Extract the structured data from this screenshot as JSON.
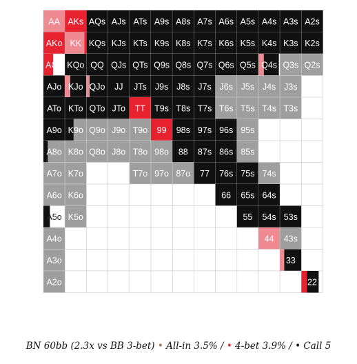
{
  "chart_data": {
    "type": "heatmap",
    "title": "",
    "ranks": [
      "A",
      "K",
      "Q",
      "J",
      "T",
      "9",
      "8",
      "7",
      "6",
      "5",
      "4",
      "3",
      "2"
    ],
    "legend": {
      "text_prefix": "BN 60bb (2.3x vs BB 3-bet)",
      "entries": [
        {
          "name": "All-in",
          "value": "3.5%",
          "color": "#f08a92"
        },
        {
          "name": "4-bet",
          "value": "3.9%",
          "color": "#e8212e"
        },
        {
          "name": "Call",
          "value": "5",
          "color": "#111111"
        }
      ],
      "separator": " / "
    },
    "colors": {
      "call": "#111111",
      "allin": "#f08a92",
      "fourbet": "#e8212e",
      "fold_gray": "#9e9e9e",
      "empty": "#ffffff",
      "grid_line": "#cccccc"
    },
    "hands": [
      [
        "AA",
        "AKs",
        "AQs",
        "AJs",
        "ATs",
        "A9s",
        "A8s",
        "A7s",
        "A6s",
        "A5s",
        "A4s",
        "A3s",
        "A2s"
      ],
      [
        "AKo",
        "KK",
        "KQs",
        "KJs",
        "KTs",
        "K9s",
        "K8s",
        "K7s",
        "K6s",
        "K5s",
        "K4s",
        "K3s",
        "K2s"
      ],
      [
        "AQo",
        "KQo",
        "QQ",
        "QJs",
        "QTs",
        "Q9s",
        "Q8s",
        "Q7s",
        "Q6s",
        "Q5s",
        "Q4s",
        "Q3s",
        "Q2s"
      ],
      [
        "AJo",
        "KJo",
        "QJo",
        "JJ",
        "JTs",
        "J9s",
        "J8s",
        "J7s",
        "J6s",
        "J5s",
        "J4s",
        "J3s",
        ""
      ],
      [
        "ATo",
        "KTo",
        "QTo",
        "JTo",
        "TT",
        "T9s",
        "T8s",
        "T7s",
        "T6s",
        "T5s",
        "T4s",
        "T3s",
        ""
      ],
      [
        "A9o",
        "K9o",
        "Q9o",
        "J9o",
        "T9o",
        "99",
        "98s",
        "97s",
        "96s",
        "95s",
        "",
        "",
        ""
      ],
      [
        "A8o",
        "K8o",
        "Q8o",
        "J8o",
        "T8o",
        "98o",
        "88",
        "87s",
        "86s",
        "85s",
        "",
        "",
        ""
      ],
      [
        "A7o",
        "K7o",
        "",
        "",
        "T7o",
        "97o",
        "87o",
        "77",
        "76s",
        "75s",
        "74s",
        "",
        ""
      ],
      [
        "A6o",
        "K6o",
        "",
        "",
        "",
        "",
        "",
        "",
        "66",
        "65s",
        "64s",
        "",
        ""
      ],
      [
        "A5o",
        "K5o",
        "",
        "",
        "",
        "",
        "",
        "",
        "",
        "55",
        "54s",
        "53s",
        ""
      ],
      [
        "A4o",
        "",
        "",
        "",
        "",
        "",
        "",
        "",
        "",
        "",
        "44",
        "43s",
        ""
      ],
      [
        "A3o",
        "",
        "",
        "",
        "",
        "",
        "",
        "",
        "",
        "",
        "",
        "33",
        ""
      ],
      [
        "A2o",
        "",
        "",
        "",
        "",
        "",
        "",
        "",
        "",
        "",
        "",
        "",
        "22"
      ]
    ],
    "frequencies": [
      [
        {
          "c": 0.0,
          "a": 0.0,
          "f": 1.0
        },
        {
          "c": 0.0,
          "a": 1.0,
          "f": 0.0
        },
        {
          "c": 1.0,
          "a": 0.0,
          "f": 0.0
        },
        {
          "c": 1.0,
          "a": 0.0,
          "f": 0.0
        },
        {
          "c": 1.0,
          "a": 0.0,
          "f": 0.0
        },
        {
          "c": 1.0,
          "a": 0.0,
          "f": 0.0
        },
        {
          "c": 1.0,
          "a": 0.0,
          "f": 0.0
        },
        {
          "c": 1.0,
          "a": 0.0,
          "f": 0.0
        },
        {
          "c": 1.0,
          "a": 0.0,
          "f": 0.0
        },
        {
          "c": 1.0,
          "a": 0.0,
          "f": 0.0
        },
        {
          "c": 1.0,
          "a": 0.0,
          "f": 0.0
        },
        {
          "c": 1.0,
          "a": 0.0,
          "f": 0.0
        },
        {
          "c": 1.0,
          "a": 0.0,
          "f": 0.0
        }
      ],
      [
        {
          "c": 0.0,
          "a": 1.0,
          "f": 0.0
        },
        {
          "c": 0.0,
          "a": 0.1,
          "f": 0.9
        },
        {
          "c": 1.0,
          "a": 0.0,
          "f": 0.0
        },
        {
          "c": 1.0,
          "a": 0.0,
          "f": 0.0
        },
        {
          "c": 1.0,
          "a": 0.0,
          "f": 0.0
        },
        {
          "c": 1.0,
          "a": 0.0,
          "f": 0.0
        },
        {
          "c": 1.0,
          "a": 0.0,
          "f": 0.0
        },
        {
          "c": 1.0,
          "a": 0.0,
          "f": 0.0
        },
        {
          "c": 1.0,
          "a": 0.0,
          "f": 0.0
        },
        {
          "c": 1.0,
          "a": 0.0,
          "f": 0.0
        },
        {
          "c": 1.0,
          "a": 0.0,
          "f": 0.0
        },
        {
          "c": 1.0,
          "a": 0.0,
          "f": 0.0
        },
        {
          "c": 1.0,
          "a": 0.0,
          "f": 0.0
        }
      ],
      [
        {
          "c": 0.0,
          "a": 0.45,
          "f": 0.0
        },
        {
          "c": 1.0,
          "a": 0.0,
          "f": 0.0
        },
        {
          "c": 1.0,
          "a": 0.0,
          "f": 0.0
        },
        {
          "c": 1.0,
          "a": 0.0,
          "f": 0.0
        },
        {
          "c": 1.0,
          "a": 0.0,
          "f": 0.0
        },
        {
          "c": 1.0,
          "a": 0.0,
          "f": 0.0
        },
        {
          "c": 1.0,
          "a": 0.0,
          "f": 0.0
        },
        {
          "c": 1.0,
          "a": 0.0,
          "f": 0.0
        },
        {
          "c": 1.0,
          "a": 0.0,
          "f": 0.0
        },
        {
          "c": 1.0,
          "a": 0.0,
          "f": 0.0
        },
        {
          "c": 0.7,
          "a": 0.0,
          "f": 0.25
        },
        {
          "c": 0.0,
          "a": 0.0,
          "f": 0.0
        },
        {
          "c": 0.0,
          "a": 0.0,
          "f": 0.0
        }
      ],
      [
        {
          "c": 1.0,
          "a": 0.0,
          "f": 0.0
        },
        {
          "c": 0.75,
          "a": 0.0,
          "f": 0.25
        },
        {
          "c": 0.85,
          "a": 0.0,
          "f": 0.15
        },
        {
          "c": 1.0,
          "a": 0.0,
          "f": 0.0
        },
        {
          "c": 1.0,
          "a": 0.0,
          "f": 0.0
        },
        {
          "c": 1.0,
          "a": 0.0,
          "f": 0.0
        },
        {
          "c": 1.0,
          "a": 0.0,
          "f": 0.0
        },
        {
          "c": 1.0,
          "a": 0.0,
          "f": 0.0
        },
        {
          "c": 0.0,
          "a": 0.0,
          "f": 0.0
        },
        {
          "c": 0.0,
          "a": 0.0,
          "f": 0.0
        },
        {
          "c": 0.0,
          "a": 0.0,
          "f": 0.0
        },
        {
          "c": 0.0,
          "a": 0.0,
          "f": 0.0
        },
        {
          "c": 0.0,
          "a": 0.0,
          "f": 0.0
        }
      ],
      [
        {
          "c": 1.0,
          "a": 0.0,
          "f": 0.0
        },
        {
          "c": 1.0,
          "a": 0.0,
          "f": 0.0
        },
        {
          "c": 1.0,
          "a": 0.0,
          "f": 0.0
        },
        {
          "c": 1.0,
          "a": 0.0,
          "f": 0.0
        },
        {
          "c": 0.0,
          "a": 1.0,
          "f": 0.0
        },
        {
          "c": 1.0,
          "a": 0.0,
          "f": 0.0
        },
        {
          "c": 1.0,
          "a": 0.0,
          "f": 0.0
        },
        {
          "c": 1.0,
          "a": 0.0,
          "f": 0.0
        },
        {
          "c": 0.0,
          "a": 0.0,
          "f": 0.0
        },
        {
          "c": 0.0,
          "a": 0.0,
          "f": 0.0
        },
        {
          "c": 0.0,
          "a": 0.0,
          "f": 0.0
        },
        {
          "c": 0.0,
          "a": 0.0,
          "f": 0.0
        },
        {
          "c": 0.0,
          "a": 0.0,
          "f": 0.0
        }
      ],
      [
        {
          "c": 1.0,
          "a": 0.0,
          "f": 0.0
        },
        {
          "c": 0.4,
          "a": 0.0,
          "f": 0.0
        },
        {
          "c": 0.0,
          "a": 0.0,
          "f": 0.0
        },
        {
          "c": 0.0,
          "a": 0.0,
          "f": 0.0
        },
        {
          "c": 0.0,
          "a": 0.0,
          "f": 0.0
        },
        {
          "c": 0.0,
          "a": 1.0,
          "f": 0.0
        },
        {
          "c": 1.0,
          "a": 0.0,
          "f": 0.0
        },
        {
          "c": 1.0,
          "a": 0.0,
          "f": 0.0
        },
        {
          "c": 1.0,
          "a": 0.0,
          "f": 0.0
        },
        {
          "c": 0.0,
          "a": 0.0,
          "f": 0.0
        },
        {
          "c": 0.0,
          "a": 0.0,
          "f": 0.0
        },
        {
          "c": 0.0,
          "a": 0.0,
          "f": 0.0
        },
        {
          "c": 0.0,
          "a": 0.0,
          "f": 0.0
        }
      ],
      [
        {
          "c": 0.2,
          "a": 0.0,
          "f": 0.0
        },
        {
          "c": 0.0,
          "a": 0.0,
          "f": 0.0
        },
        {
          "c": 0.0,
          "a": 0.0,
          "f": 0.0
        },
        {
          "c": 0.0,
          "a": 0.0,
          "f": 0.0
        },
        {
          "c": 0.0,
          "a": 0.0,
          "f": 0.0
        },
        {
          "c": 0.0,
          "a": 0.0,
          "f": 0.0
        },
        {
          "c": 1.0,
          "a": 0.0,
          "f": 0.0
        },
        {
          "c": 1.0,
          "a": 0.0,
          "f": 0.0
        },
        {
          "c": 1.0,
          "a": 0.0,
          "f": 0.0
        },
        {
          "c": 0.0,
          "a": 0.0,
          "f": 0.0
        },
        {
          "c": 0.0,
          "a": 0.0,
          "f": 0.0
        },
        {
          "c": 0.0,
          "a": 0.0,
          "f": 0.0
        },
        {
          "c": 0.0,
          "a": 0.0,
          "f": 0.0
        }
      ],
      [
        {
          "c": 0.0,
          "a": 0.0,
          "f": 0.0
        },
        {
          "c": 0.0,
          "a": 0.0,
          "f": 0.0
        },
        {
          "c": 0.0,
          "a": 0.0,
          "f": 0.0
        },
        {
          "c": 0.0,
          "a": 0.0,
          "f": 0.0
        },
        {
          "c": 0.0,
          "a": 0.0,
          "f": 0.0
        },
        {
          "c": 0.0,
          "a": 0.0,
          "f": 0.0
        },
        {
          "c": 0.0,
          "a": 0.0,
          "f": 0.0
        },
        {
          "c": 1.0,
          "a": 0.0,
          "f": 0.0
        },
        {
          "c": 1.0,
          "a": 0.0,
          "f": 0.0
        },
        {
          "c": 1.0,
          "a": 0.0,
          "f": 0.0
        },
        {
          "c": 0.0,
          "a": 0.0,
          "f": 0.0
        },
        {
          "c": 0.0,
          "a": 0.0,
          "f": 0.0
        },
        {
          "c": 0.0,
          "a": 0.0,
          "f": 0.0
        }
      ],
      [
        {
          "c": 0.0,
          "a": 0.0,
          "f": 0.0
        },
        {
          "c": 0.0,
          "a": 0.0,
          "f": 0.0
        },
        {
          "c": 0.0,
          "a": 0.0,
          "f": 0.0
        },
        {
          "c": 0.0,
          "a": 0.0,
          "f": 0.0
        },
        {
          "c": 0.0,
          "a": 0.0,
          "f": 0.0
        },
        {
          "c": 0.0,
          "a": 0.0,
          "f": 0.0
        },
        {
          "c": 0.0,
          "a": 0.0,
          "f": 0.0
        },
        {
          "c": 0.0,
          "a": 0.0,
          "f": 0.0
        },
        {
          "c": 1.0,
          "a": 0.0,
          "f": 0.0
        },
        {
          "c": 1.0,
          "a": 0.0,
          "f": 0.0
        },
        {
          "c": 1.0,
          "a": 0.0,
          "f": 0.0
        },
        {
          "c": 0.0,
          "a": 0.0,
          "f": 0.0
        },
        {
          "c": 0.0,
          "a": 0.0,
          "f": 0.0
        }
      ],
      [
        {
          "c": 0.3,
          "a": 0.0,
          "f": 0.0
        },
        {
          "c": 0.0,
          "a": 0.0,
          "f": 0.0
        },
        {
          "c": 0.0,
          "a": 0.0,
          "f": 0.0
        },
        {
          "c": 0.0,
          "a": 0.0,
          "f": 0.0
        },
        {
          "c": 0.0,
          "a": 0.0,
          "f": 0.0
        },
        {
          "c": 0.0,
          "a": 0.0,
          "f": 0.0
        },
        {
          "c": 0.0,
          "a": 0.0,
          "f": 0.0
        },
        {
          "c": 0.0,
          "a": 0.0,
          "f": 0.0
        },
        {
          "c": 0.0,
          "a": 0.0,
          "f": 0.0
        },
        {
          "c": 1.0,
          "a": 0.0,
          "f": 0.0
        },
        {
          "c": 1.0,
          "a": 0.0,
          "f": 0.0
        },
        {
          "c": 1.0,
          "a": 0.0,
          "f": 0.0
        },
        {
          "c": 0.0,
          "a": 0.0,
          "f": 0.0
        }
      ],
      [
        {
          "c": 0.0,
          "a": 0.0,
          "f": 0.0
        },
        {
          "c": 0.0,
          "a": 0.0,
          "f": 0.0
        },
        {
          "c": 0.0,
          "a": 0.0,
          "f": 0.0
        },
        {
          "c": 0.0,
          "a": 0.0,
          "f": 0.0
        },
        {
          "c": 0.0,
          "a": 0.0,
          "f": 0.0
        },
        {
          "c": 0.0,
          "a": 0.0,
          "f": 0.0
        },
        {
          "c": 0.0,
          "a": 0.0,
          "f": 0.0
        },
        {
          "c": 0.0,
          "a": 0.0,
          "f": 0.0
        },
        {
          "c": 0.0,
          "a": 0.0,
          "f": 0.0
        },
        {
          "c": 0.0,
          "a": 0.0,
          "f": 0.0
        },
        {
          "c": 0.0,
          "a": 0.0,
          "f": 1.0
        },
        {
          "c": 0.0,
          "a": 0.0,
          "f": 0.0
        },
        {
          "c": 0.0,
          "a": 0.0,
          "f": 0.0
        }
      ],
      [
        {
          "c": 0.0,
          "a": 0.0,
          "f": 0.0
        },
        {
          "c": 0.0,
          "a": 0.0,
          "f": 0.0
        },
        {
          "c": 0.0,
          "a": 0.0,
          "f": 0.0
        },
        {
          "c": 0.0,
          "a": 0.0,
          "f": 0.0
        },
        {
          "c": 0.0,
          "a": 0.0,
          "f": 0.0
        },
        {
          "c": 0.0,
          "a": 0.0,
          "f": 0.0
        },
        {
          "c": 0.0,
          "a": 0.0,
          "f": 0.0
        },
        {
          "c": 0.0,
          "a": 0.0,
          "f": 0.0
        },
        {
          "c": 0.0,
          "a": 0.0,
          "f": 0.0
        },
        {
          "c": 0.0,
          "a": 0.0,
          "f": 0.0
        },
        {
          "c": 0.0,
          "a": 0.0,
          "f": 0.0
        },
        {
          "c": 0.8,
          "a": 0.0,
          "f": 0.2
        },
        {
          "c": 0.0,
          "a": 0.0,
          "f": 0.0
        }
      ],
      [
        {
          "c": 0.0,
          "a": 0.0,
          "f": 0.0
        },
        {
          "c": 0.0,
          "a": 0.0,
          "f": 0.0
        },
        {
          "c": 0.0,
          "a": 0.0,
          "f": 0.0
        },
        {
          "c": 0.0,
          "a": 0.0,
          "f": 0.0
        },
        {
          "c": 0.0,
          "a": 0.0,
          "f": 0.0
        },
        {
          "c": 0.0,
          "a": 0.0,
          "f": 0.0
        },
        {
          "c": 0.0,
          "a": 0.0,
          "f": 0.0
        },
        {
          "c": 0.0,
          "a": 0.0,
          "f": 0.0
        },
        {
          "c": 0.0,
          "a": 0.0,
          "f": 0.0
        },
        {
          "c": 0.0,
          "a": 0.0,
          "f": 0.0
        },
        {
          "c": 0.0,
          "a": 0.0,
          "f": 0.0
        },
        {
          "c": 0.0,
          "a": 0.0,
          "f": 0.0
        },
        {
          "c": 0.55,
          "a": 0.25,
          "f": 0.0
        }
      ]
    ],
    "gray_cells": [
      [
        2,
        11
      ],
      [
        2,
        12
      ],
      [
        3,
        8
      ],
      [
        3,
        9
      ],
      [
        3,
        10
      ],
      [
        3,
        11
      ],
      [
        4,
        8
      ],
      [
        4,
        9
      ],
      [
        4,
        10
      ],
      [
        4,
        11
      ],
      [
        5,
        1
      ],
      [
        5,
        2
      ],
      [
        5,
        3
      ],
      [
        5,
        4
      ],
      [
        5,
        9
      ],
      [
        6,
        0
      ],
      [
        6,
        1
      ],
      [
        6,
        2
      ],
      [
        6,
        3
      ],
      [
        6,
        4
      ],
      [
        6,
        5
      ],
      [
        6,
        9
      ],
      [
        7,
        0
      ],
      [
        7,
        1
      ],
      [
        7,
        4
      ],
      [
        7,
        5
      ],
      [
        7,
        6
      ],
      [
        7,
        10
      ],
      [
        8,
        0
      ],
      [
        8,
        1
      ],
      [
        9,
        1
      ],
      [
        10,
        0
      ],
      [
        10,
        11
      ],
      [
        11,
        0
      ],
      [
        12,
        0
      ]
    ]
  }
}
